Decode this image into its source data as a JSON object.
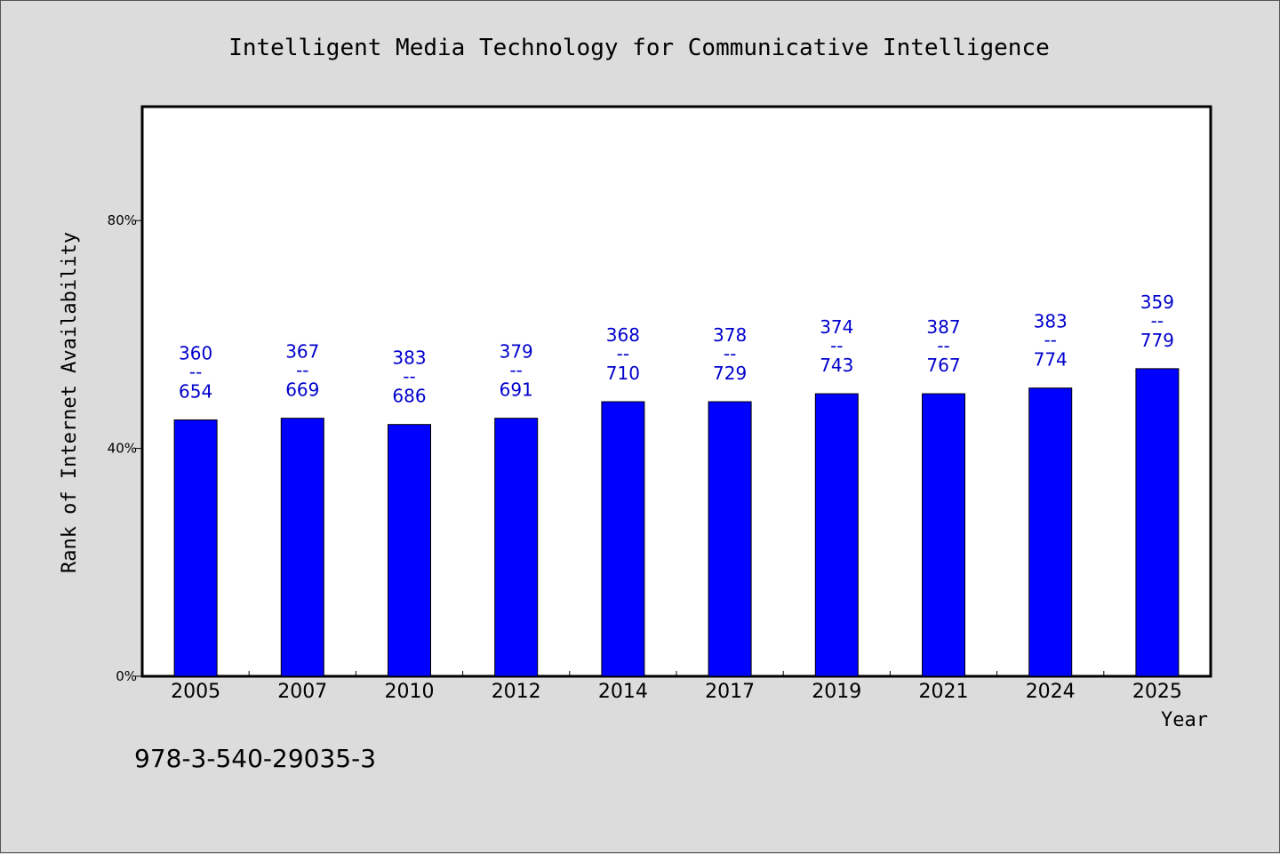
{
  "chart_data": {
    "type": "bar",
    "title": "Intelligent Media Technology for Communicative Intelligence",
    "xlabel": "Year",
    "ylabel": "Rank of Internet Availability",
    "categories": [
      "2005",
      "2007",
      "2010",
      "2012",
      "2014",
      "2017",
      "2019",
      "2021",
      "2024",
      "2025"
    ],
    "values": [
      45,
      45.3,
      44.2,
      45.3,
      48.2,
      48.2,
      49.6,
      49.6,
      50.6,
      54
    ],
    "ylim": [
      0,
      100
    ],
    "yticks": [
      0,
      40,
      80
    ],
    "ytick_labels": [
      "0%",
      "40%",
      "80%"
    ],
    "data_labels": [
      {
        "top": "360",
        "sep": "--",
        "bottom": "654"
      },
      {
        "top": "367",
        "sep": "--",
        "bottom": "669"
      },
      {
        "top": "383",
        "sep": "--",
        "bottom": "686"
      },
      {
        "top": "379",
        "sep": "--",
        "bottom": "691"
      },
      {
        "top": "368",
        "sep": "--",
        "bottom": "710"
      },
      {
        "top": "378",
        "sep": "--",
        "bottom": "729"
      },
      {
        "top": "374",
        "sep": "--",
        "bottom": "743"
      },
      {
        "top": "387",
        "sep": "--",
        "bottom": "767"
      },
      {
        "top": "383",
        "sep": "--",
        "bottom": "774"
      },
      {
        "top": "359",
        "sep": "--",
        "bottom": "779"
      }
    ],
    "bar_color": "#0000ff",
    "label_color": "#0000cc",
    "grid": false,
    "legend": "none"
  },
  "footer": {
    "isbn": "978-3-540-29035-3"
  },
  "colors": {
    "background": "#dcdcdc",
    "plot_background": "#ffffff"
  }
}
